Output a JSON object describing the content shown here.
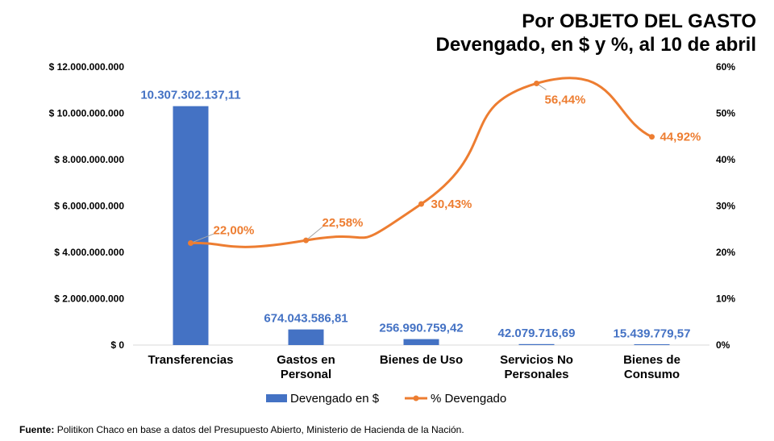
{
  "title": {
    "line1": "Por OBJETO DEL GASTO",
    "line2": "Devengado, en $ y %, al 10 de abril"
  },
  "source": {
    "label": "Fuente:",
    "text": "Politikon Chaco en base a datos del Presupuesto Abierto, Ministerio de Hacienda de la Nación."
  },
  "chart_data": {
    "type": "bar",
    "categories": [
      [
        "Transferencias"
      ],
      [
        "Gastos en",
        "Personal"
      ],
      [
        "Bienes de Uso"
      ],
      [
        "Servicios No",
        "Personales"
      ],
      [
        "Bienes de",
        "Consumo"
      ]
    ],
    "series": [
      {
        "name": "Devengado en $",
        "type": "bar",
        "axis": "left",
        "color": "#4472C4",
        "values": [
          10307302137.11,
          674043586.81,
          256990759.42,
          42079716.69,
          15439779.57
        ],
        "labels": [
          "10.307.302.137,11",
          "674.043.586,81",
          "256.990.759,42",
          "42.079.716,69",
          "15.439.779,57"
        ]
      },
      {
        "name": "% Devengado",
        "type": "line",
        "axis": "right",
        "color": "#ED7D31",
        "values": [
          22.0,
          22.58,
          30.43,
          56.44,
          44.92
        ],
        "labels": [
          "22,00%",
          "22,58%",
          "30,43%",
          "56,44%",
          "44,92%"
        ]
      }
    ],
    "y_left": {
      "range": [
        0,
        12000000000
      ],
      "ticks": [
        "$ 0",
        "$ 2.000.000.000",
        "$ 4.000.000.000",
        "$ 6.000.000.000",
        "$ 8.000.000.000",
        "$ 10.000.000.000",
        "$ 12.000.000.000"
      ]
    },
    "y_right": {
      "range": [
        0,
        60
      ],
      "ticks": [
        "0%",
        "10%",
        "20%",
        "30%",
        "40%",
        "50%",
        "60%"
      ]
    },
    "grid": false,
    "legend": "bottom"
  }
}
